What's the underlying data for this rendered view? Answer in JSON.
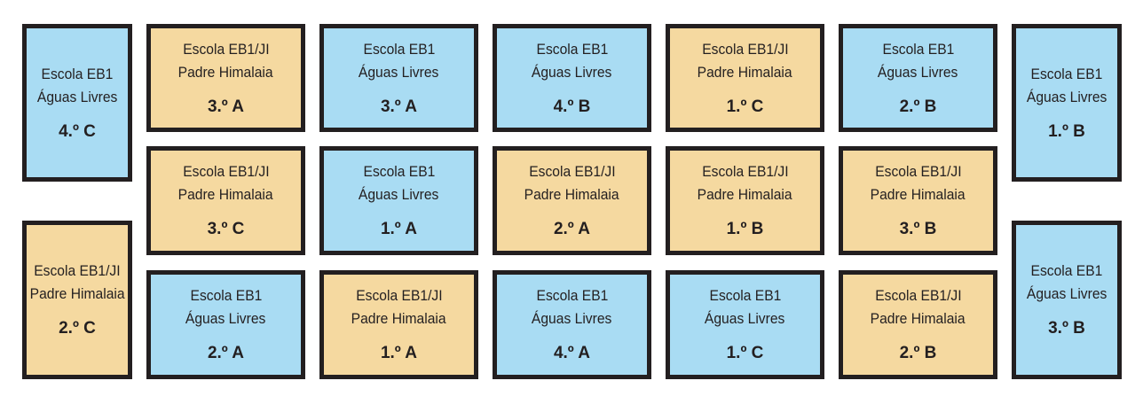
{
  "colors": {
    "blue": "#a9dcf3",
    "orange": "#f5d9a0",
    "border": "#231f20"
  },
  "schools": {
    "agua": {
      "line1": "Escola EB1",
      "line2": "Águas Livres",
      "color": "blue"
    },
    "padre": {
      "line1": "Escola EB1/JI",
      "line2": "Padre Himalaia",
      "color": "orange"
    }
  },
  "cards": [
    {
      "school": "agua",
      "line1": "Escola EB1",
      "line2": "Águas Livres",
      "class": "4.º C"
    },
    {
      "school": "agua",
      "line1": "Escola EB1",
      "line2": "Águas Livres",
      "class": "1.º B"
    },
    {
      "school": "padre",
      "line1": "Escola EB1/JI",
      "line2": "Padre Himalaia",
      "class": "2.º C"
    },
    {
      "school": "agua",
      "line1": "Escola EB1",
      "line2": "Águas Livres",
      "class": "3.º B"
    },
    {
      "school": "padre",
      "line1": "Escola EB1/JI",
      "line2": "Padre Himalaia",
      "class": "3.º A"
    },
    {
      "school": "agua",
      "line1": "Escola EB1",
      "line2": "Águas Livres",
      "class": "3.º A"
    },
    {
      "school": "agua",
      "line1": "Escola EB1",
      "line2": "Águas Livres",
      "class": "4.º B"
    },
    {
      "school": "padre",
      "line1": "Escola EB1/JI",
      "line2": "Padre Himalaia",
      "class": "1.º C"
    },
    {
      "school": "agua",
      "line1": "Escola EB1",
      "line2": "Águas Livres",
      "class": "2.º B"
    },
    {
      "school": "padre",
      "line1": "Escola EB1/JI",
      "line2": "Padre Himalaia",
      "class": "3.º C"
    },
    {
      "school": "agua",
      "line1": "Escola EB1",
      "line2": "Águas Livres",
      "class": "1.º A"
    },
    {
      "school": "padre",
      "line1": "Escola EB1/JI",
      "line2": "Padre Himalaia",
      "class": "2.º A"
    },
    {
      "school": "padre",
      "line1": "Escola EB1/JI",
      "line2": "Padre Himalaia",
      "class": "1.º B"
    },
    {
      "school": "padre",
      "line1": "Escola EB1/JI",
      "line2": "Padre Himalaia",
      "class": "3.º B"
    },
    {
      "school": "agua",
      "line1": "Escola EB1",
      "line2": "Águas Livres",
      "class": "2.º A"
    },
    {
      "school": "padre",
      "line1": "Escola EB1/JI",
      "line2": "Padre Himalaia",
      "class": "1.º A"
    },
    {
      "school": "agua",
      "line1": "Escola EB1",
      "line2": "Águas Livres",
      "class": "4.º A"
    },
    {
      "school": "agua",
      "line1": "Escola EB1",
      "line2": "Águas Livres",
      "class": "1.º C"
    },
    {
      "school": "padre",
      "line1": "Escola EB1/JI",
      "line2": "Padre Himalaia",
      "class": "2.º B"
    }
  ]
}
